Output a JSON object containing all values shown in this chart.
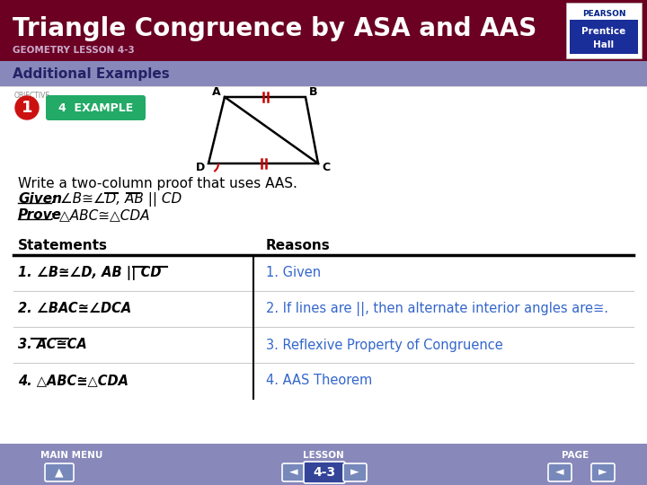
{
  "title": "Triangle Congruence by ASA and AAS",
  "subtitle": "GEOMETRY LESSON 4-3",
  "section_label": "Additional Examples",
  "bg_title": "#6b0022",
  "bg_section": "#8888bb",
  "bg_main": "#ffffff",
  "bg_footer": "#8888bb",
  "title_color": "#ffffff",
  "subtitle_color": "#ccaacc",
  "section_color": "#222266",
  "write_text": "Write a two-column proof that uses AAS.",
  "given_label": "Given",
  "given_rest": ": ∠B≅∠D, AB || CD",
  "prove_label": "Prove",
  "prove_rest": ": △ABC≅△CDA",
  "statements_header": "Statements",
  "reasons_header": "Reasons",
  "statements": [
    "1. ∠B≅∠D, AB || CD",
    "2. ∠BAC≅∠DCA",
    "3. AC≅CA",
    "4. △ABC≅△CDA"
  ],
  "reasons": [
    "1. Given",
    "2. If lines are ||, then alternate interior angles are≅.",
    "3. Reflexive Property of Congruence",
    "4. AAS Theorem"
  ],
  "reason_color": "#3366cc",
  "statement_color": "#000000",
  "footer_labels": [
    "MAIN MENU",
    "LESSON",
    "PAGE"
  ],
  "footer_color": "#ffffff",
  "page_label": "4-3",
  "pearson_color": "#002288",
  "ph_bg": "#1a2e99"
}
